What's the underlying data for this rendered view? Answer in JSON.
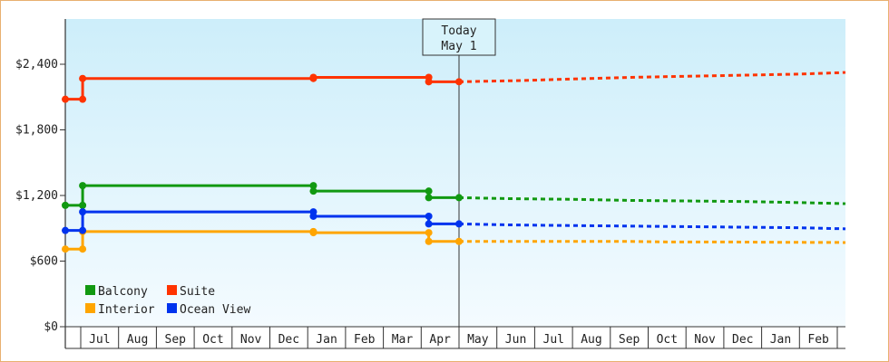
{
  "chart_data": {
    "type": "line",
    "title": "",
    "xlabel": "",
    "ylabel": "",
    "ylim": [
      0,
      2400
    ],
    "y_ticks": [
      "$0",
      "$600",
      "$1,200",
      "$1,800",
      "$2,400"
    ],
    "y_tick_values": [
      0,
      600,
      1200,
      1800,
      2400
    ],
    "x_month_labels": [
      "Jul",
      "Aug",
      "Sep",
      "Oct",
      "Nov",
      "Dec",
      "Jan",
      "Feb",
      "Mar",
      "Apr",
      "May",
      "Jun",
      "Jul",
      "Aug",
      "Sep",
      "Oct",
      "Nov",
      "Dec",
      "Jan",
      "Feb"
    ],
    "today": {
      "line1": "Today",
      "line2": "May 1"
    },
    "grid": false,
    "legend_position": "bottom-left",
    "series": [
      {
        "name": "Balcony",
        "color": "#119911",
        "history": [
          [
            -0.5,
            1110
          ],
          [
            0.05,
            1110
          ],
          [
            0.05,
            1290
          ],
          [
            6.15,
            1290
          ],
          [
            6.15,
            1240
          ],
          [
            9.2,
            1240
          ],
          [
            9.2,
            1180
          ],
          [
            10.0,
            1180
          ]
        ],
        "forecast": [
          [
            10.0,
            1180
          ],
          [
            11.5,
            1170
          ],
          [
            13.0,
            1165
          ],
          [
            14.5,
            1155
          ],
          [
            16.0,
            1150
          ],
          [
            17.5,
            1145
          ],
          [
            19.0,
            1135
          ],
          [
            20.5,
            1125
          ]
        ]
      },
      {
        "name": "Interior",
        "color": "#ffa500",
        "history": [
          [
            -0.5,
            710
          ],
          [
            0.05,
            710
          ],
          [
            0.05,
            870
          ],
          [
            6.15,
            870
          ],
          [
            6.15,
            860
          ],
          [
            9.2,
            860
          ],
          [
            9.2,
            780
          ],
          [
            10.0,
            780
          ]
        ],
        "forecast": [
          [
            10.0,
            780
          ],
          [
            11.5,
            780
          ],
          [
            13.0,
            780
          ],
          [
            14.5,
            780
          ],
          [
            15.5,
            775
          ],
          [
            17.0,
            775
          ],
          [
            18.5,
            772
          ],
          [
            20.5,
            770
          ]
        ]
      },
      {
        "name": "Suite",
        "color": "#ff3300",
        "history": [
          [
            -0.5,
            2080
          ],
          [
            0.05,
            2080
          ],
          [
            0.05,
            2270
          ],
          [
            6.15,
            2270
          ],
          [
            6.15,
            2280
          ],
          [
            9.2,
            2280
          ],
          [
            9.2,
            2240
          ],
          [
            10.0,
            2240
          ]
        ],
        "forecast": [
          [
            10.0,
            2240
          ],
          [
            11.5,
            2250
          ],
          [
            13.0,
            2265
          ],
          [
            14.5,
            2280
          ],
          [
            16.0,
            2290
          ],
          [
            17.5,
            2300
          ],
          [
            19.0,
            2310
          ],
          [
            20.5,
            2325
          ]
        ]
      },
      {
        "name": "Ocean View",
        "color": "#0033ee",
        "history": [
          [
            -0.5,
            880
          ],
          [
            0.05,
            880
          ],
          [
            0.05,
            1050
          ],
          [
            6.15,
            1050
          ],
          [
            6.15,
            1010
          ],
          [
            9.2,
            1010
          ],
          [
            9.2,
            940
          ],
          [
            10.0,
            940
          ]
        ],
        "forecast": [
          [
            10.0,
            940
          ],
          [
            11.5,
            930
          ],
          [
            13.0,
            925
          ],
          [
            14.5,
            920
          ],
          [
            16.0,
            915
          ],
          [
            17.5,
            910
          ],
          [
            19.0,
            905
          ],
          [
            20.5,
            895
          ]
        ]
      }
    ]
  }
}
